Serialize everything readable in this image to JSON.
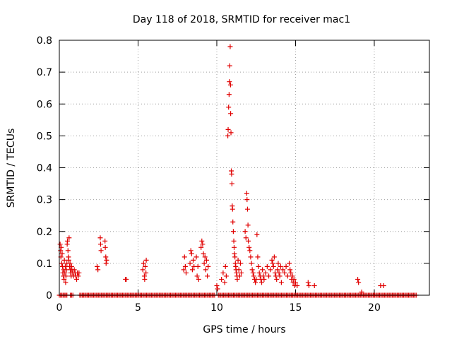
{
  "chart_data": {
    "type": "scatter",
    "title": "Day 118 of 2018, SRMTID for receiver mac1",
    "xlabel": "GPS time / hours",
    "ylabel": "SRMTID / TECUs",
    "xlim": [
      0,
      23.5
    ],
    "ylim": [
      0,
      0.8
    ],
    "xticks": [
      0,
      5,
      10,
      15,
      20
    ],
    "yticks": [
      0,
      0.1,
      0.2,
      0.3,
      0.4,
      0.5,
      0.6,
      0.7,
      0.8
    ],
    "grid": true,
    "marker": "plus",
    "marker_color": "#e00000",
    "series": [
      {
        "points": [
          [
            0.05,
            0.16
          ],
          [
            0.08,
            0.14
          ],
          [
            0.1,
            0.12
          ],
          [
            0.12,
            0.15
          ],
          [
            0.15,
            0.1
          ],
          [
            0.18,
            0.13
          ],
          [
            0.2,
            0.09
          ],
          [
            0.22,
            0.07
          ],
          [
            0.25,
            0.06
          ],
          [
            0.28,
            0.08
          ],
          [
            0.3,
            0.05
          ],
          [
            0.32,
            0.11
          ],
          [
            0.35,
            0.07
          ],
          [
            0.38,
            0.09
          ],
          [
            0.4,
            0.04
          ],
          [
            0.42,
            0.06
          ],
          [
            0.45,
            0.08
          ],
          [
            0.48,
            0.1
          ],
          [
            0.5,
            0.16
          ],
          [
            0.52,
            0.17
          ],
          [
            0.55,
            0.14
          ],
          [
            0.58,
            0.12
          ],
          [
            0.6,
            0.11
          ],
          [
            0.62,
            0.18
          ],
          [
            0.65,
            0.09
          ],
          [
            0.68,
            0.1
          ],
          [
            0.7,
            0.08
          ],
          [
            0.72,
            0.07
          ],
          [
            0.75,
            0.06
          ],
          [
            0.78,
            0.09
          ],
          [
            0.8,
            0.08
          ],
          [
            0.85,
            0.07
          ],
          [
            0.9,
            0.06
          ],
          [
            0.95,
            0.08
          ],
          [
            1.0,
            0.07
          ],
          [
            1.05,
            0.06
          ],
          [
            1.1,
            0.05
          ],
          [
            1.15,
            0.07
          ],
          [
            1.2,
            0.06
          ],
          [
            1.25,
            0.07
          ],
          [
            2.4,
            0.09
          ],
          [
            2.45,
            0.08
          ],
          [
            2.6,
            0.18
          ],
          [
            2.62,
            0.16
          ],
          [
            2.65,
            0.14
          ],
          [
            2.9,
            0.17
          ],
          [
            2.92,
            0.15
          ],
          [
            2.95,
            0.12
          ],
          [
            2.97,
            0.1
          ],
          [
            3.0,
            0.11
          ],
          [
            4.2,
            0.05
          ],
          [
            4.25,
            0.05
          ],
          [
            5.3,
            0.08
          ],
          [
            5.35,
            0.1
          ],
          [
            5.4,
            0.06
          ],
          [
            5.42,
            0.05
          ],
          [
            5.45,
            0.09
          ],
          [
            5.5,
            0.07
          ],
          [
            5.52,
            0.11
          ],
          [
            7.9,
            0.08
          ],
          [
            7.95,
            0.12
          ],
          [
            8.0,
            0.09
          ],
          [
            8.05,
            0.07
          ],
          [
            8.3,
            0.1
          ],
          [
            8.35,
            0.14
          ],
          [
            8.4,
            0.13
          ],
          [
            8.45,
            0.08
          ],
          [
            8.5,
            0.11
          ],
          [
            8.55,
            0.09
          ],
          [
            8.7,
            0.12
          ],
          [
            8.75,
            0.06
          ],
          [
            8.8,
            0.09
          ],
          [
            8.85,
            0.05
          ],
          [
            9.0,
            0.15
          ],
          [
            9.05,
            0.17
          ],
          [
            9.1,
            0.16
          ],
          [
            9.15,
            0.13
          ],
          [
            9.2,
            0.1
          ],
          [
            9.25,
            0.12
          ],
          [
            9.3,
            0.08
          ],
          [
            9.35,
            0.11
          ],
          [
            9.4,
            0.06
          ],
          [
            9.45,
            0.09
          ],
          [
            10.0,
            0.03
          ],
          [
            10.05,
            0.02
          ],
          [
            10.3,
            0.05
          ],
          [
            10.4,
            0.07
          ],
          [
            10.5,
            0.04
          ],
          [
            10.55,
            0.09
          ],
          [
            10.6,
            0.06
          ],
          [
            10.7,
            0.5
          ],
          [
            10.72,
            0.52
          ],
          [
            10.75,
            0.59
          ],
          [
            10.78,
            0.63
          ],
          [
            10.8,
            0.67
          ],
          [
            10.82,
            0.72
          ],
          [
            10.85,
            0.78
          ],
          [
            10.87,
            0.66
          ],
          [
            10.88,
            0.57
          ],
          [
            10.9,
            0.51
          ],
          [
            10.92,
            0.39
          ],
          [
            10.94,
            0.38
          ],
          [
            10.96,
            0.35
          ],
          [
            10.98,
            0.28
          ],
          [
            11.0,
            0.27
          ],
          [
            11.02,
            0.23
          ],
          [
            11.05,
            0.2
          ],
          [
            11.08,
            0.17
          ],
          [
            11.1,
            0.15
          ],
          [
            11.12,
            0.13
          ],
          [
            11.15,
            0.12
          ],
          [
            11.18,
            0.1
          ],
          [
            11.2,
            0.09
          ],
          [
            11.22,
            0.08
          ],
          [
            11.25,
            0.07
          ],
          [
            11.28,
            0.06
          ],
          [
            11.3,
            0.05
          ],
          [
            11.35,
            0.11
          ],
          [
            11.4,
            0.08
          ],
          [
            11.45,
            0.06
          ],
          [
            11.5,
            0.1
          ],
          [
            11.55,
            0.07
          ],
          [
            11.8,
            0.2
          ],
          [
            11.85,
            0.18
          ],
          [
            11.9,
            0.32
          ],
          [
            11.92,
            0.3
          ],
          [
            11.95,
            0.27
          ],
          [
            11.98,
            0.22
          ],
          [
            12.0,
            0.17
          ],
          [
            12.05,
            0.15
          ],
          [
            12.1,
            0.14
          ],
          [
            12.15,
            0.12
          ],
          [
            12.2,
            0.1
          ],
          [
            12.25,
            0.08
          ],
          [
            12.3,
            0.07
          ],
          [
            12.35,
            0.06
          ],
          [
            12.4,
            0.05
          ],
          [
            12.45,
            0.04
          ],
          [
            12.5,
            0.05
          ],
          [
            12.55,
            0.19
          ],
          [
            12.6,
            0.12
          ],
          [
            12.65,
            0.09
          ],
          [
            12.7,
            0.07
          ],
          [
            12.75,
            0.06
          ],
          [
            12.8,
            0.05
          ],
          [
            12.85,
            0.04
          ],
          [
            12.9,
            0.08
          ],
          [
            12.95,
            0.06
          ],
          [
            13.0,
            0.05
          ],
          [
            13.1,
            0.07
          ],
          [
            13.2,
            0.09
          ],
          [
            13.3,
            0.06
          ],
          [
            13.4,
            0.08
          ],
          [
            13.5,
            0.11
          ],
          [
            13.55,
            0.1
          ],
          [
            13.6,
            0.09
          ],
          [
            13.65,
            0.12
          ],
          [
            13.7,
            0.07
          ],
          [
            13.75,
            0.06
          ],
          [
            13.8,
            0.05
          ],
          [
            13.85,
            0.08
          ],
          [
            13.9,
            0.1
          ],
          [
            13.95,
            0.07
          ],
          [
            14.0,
            0.06
          ],
          [
            14.05,
            0.09
          ],
          [
            14.1,
            0.04
          ],
          [
            14.2,
            0.08
          ],
          [
            14.3,
            0.07
          ],
          [
            14.4,
            0.09
          ],
          [
            14.5,
            0.06
          ],
          [
            14.6,
            0.1
          ],
          [
            14.65,
            0.08
          ],
          [
            14.7,
            0.07
          ],
          [
            14.75,
            0.05
          ],
          [
            14.8,
            0.06
          ],
          [
            14.85,
            0.04
          ],
          [
            14.9,
            0.05
          ],
          [
            14.95,
            0.03
          ],
          [
            15.0,
            0.04
          ],
          [
            15.1,
            0.03
          ],
          [
            15.8,
            0.04
          ],
          [
            15.85,
            0.03
          ],
          [
            16.2,
            0.03
          ],
          [
            18.95,
            0.05
          ],
          [
            19.0,
            0.04
          ],
          [
            19.2,
            0.01
          ],
          [
            20.4,
            0.03
          ],
          [
            20.6,
            0.03
          ]
        ]
      }
    ],
    "zero_segments": [
      [
        0.0,
        0.5
      ],
      [
        0.7,
        0.9
      ],
      [
        1.3,
        9.9
      ],
      [
        10.1,
        22.7
      ]
    ]
  }
}
